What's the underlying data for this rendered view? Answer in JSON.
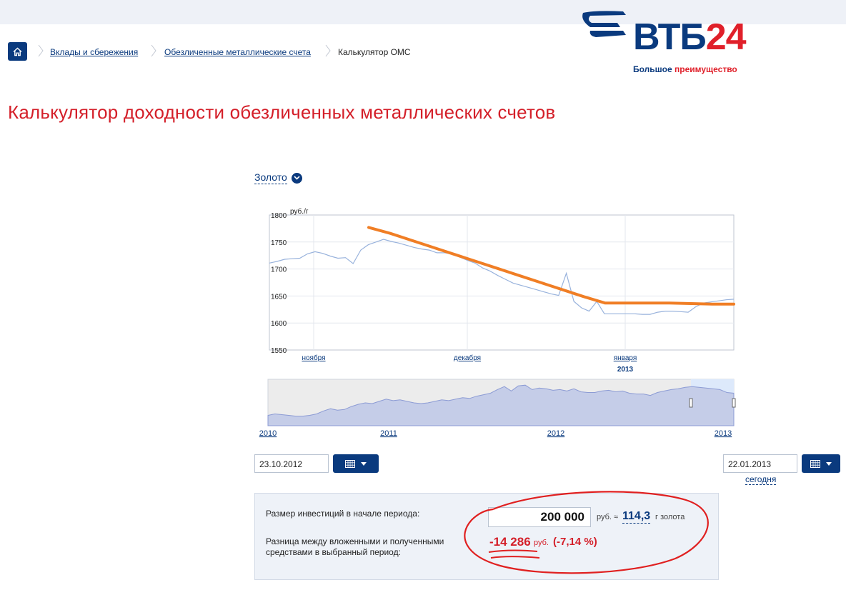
{
  "breadcrumbs": [
    {
      "label": "Вклады и сбережения"
    },
    {
      "label": "Обезличенные металлические счета"
    },
    {
      "label": "Калькулятор ОМС"
    }
  ],
  "logo": {
    "brand_main": "ВТБ",
    "brand_num": "24",
    "slogan_a": "Большое ",
    "slogan_b": "преимущество"
  },
  "page": {
    "title": "Калькулятор доходности обезличенных металлических счетов"
  },
  "metal_selector": {
    "value": "Золото"
  },
  "chart_data": {
    "type": "line",
    "title": "",
    "ylabel": "руб./г",
    "ylim": [
      1550,
      1800
    ],
    "y_ticks": [
      1550,
      1600,
      1650,
      1700,
      1750,
      1800
    ],
    "x_ticks": [
      "ноября",
      "декабря",
      "января"
    ],
    "year_label": "2013",
    "grid": true,
    "series": [
      {
        "values": [
          1711,
          1714,
          1718,
          1719,
          1720,
          1728,
          1732,
          1729,
          1724,
          1720,
          1721,
          1710,
          1735,
          1745,
          1750,
          1755,
          1751,
          1748,
          1744,
          1740,
          1737,
          1735,
          1730,
          1730,
          1728,
          1722,
          1716,
          1711,
          1702,
          1696,
          1688,
          1681,
          1674,
          1670,
          1666,
          1662,
          1658,
          1654,
          1651,
          1692,
          1640,
          1628,
          1622,
          1640,
          1617,
          1617,
          1617,
          1617,
          1617,
          1616,
          1616,
          1620,
          1622,
          1622,
          1621,
          1620,
          1630,
          1637,
          1639,
          1641,
          1643,
          1644
        ]
      },
      {
        "values": [
          1777,
          1766,
          1753,
          1740,
          1727,
          1714,
          1701,
          1688,
          1675,
          1662,
          1649,
          1637,
          1637,
          1637,
          1637,
          1636,
          1635,
          1635
        ]
      }
    ]
  },
  "overview": {
    "year_ticks": [
      "2010",
      "2011",
      "2012",
      "2013"
    ]
  },
  "dates": {
    "start": "23.10.2012",
    "end": "22.01.2013",
    "today_link": "сегодня"
  },
  "calc": {
    "invest_label": "Размер инвестиций в начале периода:",
    "invest_value": "200 000",
    "invest_unit": "руб. ≈",
    "grams_value": "114,3",
    "grams_unit": "г  золота",
    "diff_label_1": "Разница между вложенными и полученными",
    "diff_label_2": "средствами в выбранный период:",
    "diff_value": "-14 286",
    "diff_unit": "руб.",
    "diff_pct": "(-7,14 %)"
  }
}
